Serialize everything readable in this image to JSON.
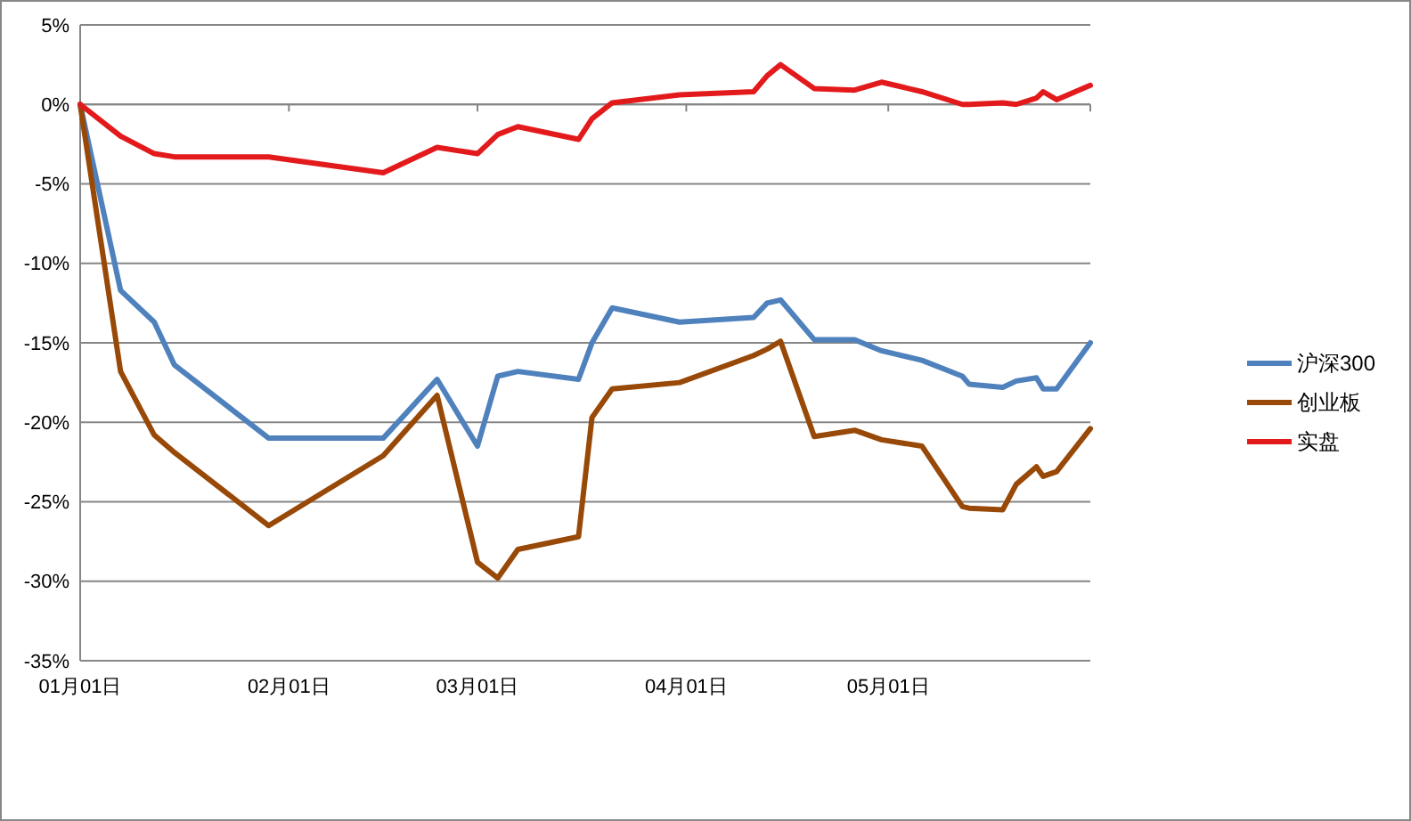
{
  "chart_data": {
    "type": "line",
    "x": [
      "--01-01",
      "--01-07",
      "--01-12",
      "--01-15",
      "--01-29",
      "--02-15",
      "--02-23",
      "--03-01",
      "--03-04",
      "--03-07",
      "--03-16",
      "--03-18",
      "--03-21",
      "--03-31",
      "--04-11",
      "--04-13",
      "--04-15",
      "--04-20",
      "--04-26",
      "--04-30",
      "--05-06",
      "--05-12",
      "--05-13",
      "--05-18",
      "--05-20",
      "--05-23",
      "--05-24",
      "--05-26",
      "--05-31"
    ],
    "series": [
      {
        "name": "沪深300",
        "color": "#4f81bd",
        "values": [
          0,
          -11.7,
          -13.7,
          -16.4,
          -21.0,
          -21.0,
          -17.3,
          -21.5,
          -17.1,
          -16.8,
          -17.3,
          -15.0,
          -12.8,
          -13.7,
          -13.4,
          -12.5,
          -12.3,
          -14.8,
          -14.8,
          -15.5,
          -16.1,
          -17.1,
          -17.6,
          -17.8,
          -17.4,
          -17.2,
          -17.9,
          -17.9,
          -15.0
        ]
      },
      {
        "name": "创业板",
        "color": "#984807",
        "values": [
          0,
          -16.8,
          -20.8,
          -21.9,
          -26.5,
          -22.1,
          -18.3,
          -28.8,
          -29.8,
          -28.0,
          -27.2,
          -19.7,
          -17.9,
          -17.5,
          -15.8,
          -15.4,
          -14.9,
          -20.9,
          -20.5,
          -21.1,
          -21.5,
          -25.3,
          -25.4,
          -25.5,
          -23.9,
          -22.8,
          -23.4,
          -23.1,
          -20.4
        ]
      },
      {
        "name": "实盘",
        "color": "#e31a1c",
        "values": [
          0,
          -2.0,
          -3.1,
          -3.3,
          -3.3,
          -4.3,
          -2.7,
          -3.1,
          -1.9,
          -1.4,
          -2.2,
          -0.9,
          0.1,
          0.6,
          0.8,
          1.8,
          2.5,
          1.0,
          0.9,
          1.4,
          0.8,
          0.0,
          0.0,
          0.1,
          0.0,
          0.4,
          0.8,
          0.3,
          1.2
        ]
      }
    ],
    "xlim": [
      "--01-01",
      "--05-31"
    ],
    "xticks": [
      {
        "value": "--01-01",
        "label": "01月01日"
      },
      {
        "value": "--02-01",
        "label": "02月01日"
      },
      {
        "value": "--03-01",
        "label": "03月01日"
      },
      {
        "value": "--04-01",
        "label": "04月01日"
      },
      {
        "value": "--05-01",
        "label": "05月01日"
      }
    ],
    "ylim": [
      -35,
      5
    ],
    "yticks": [
      {
        "value": 5,
        "label": "5%"
      },
      {
        "value": 0,
        "label": "0%"
      },
      {
        "value": -5,
        "label": "-5%"
      },
      {
        "value": -10,
        "label": "-10%"
      },
      {
        "value": -15,
        "label": "-15%"
      },
      {
        "value": -20,
        "label": "-20%"
      },
      {
        "value": -25,
        "label": "-25%"
      },
      {
        "value": -30,
        "label": "-30%"
      },
      {
        "value": -35,
        "label": "-35%"
      }
    ],
    "grid": "y",
    "legend": "right",
    "marker": "none",
    "line_style": "solid"
  }
}
